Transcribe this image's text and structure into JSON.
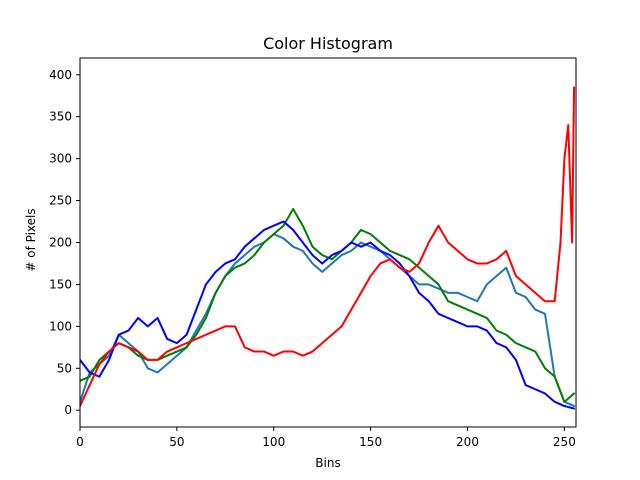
{
  "chart_data": {
    "type": "line",
    "title": "Color Histogram",
    "xlabel": "Bins",
    "ylabel": "# of Pixels",
    "xlim": [
      0,
      256
    ],
    "ylim": [
      -20,
      420
    ],
    "xticks": [
      0,
      50,
      100,
      150,
      200,
      250
    ],
    "yticks": [
      0,
      50,
      100,
      150,
      200,
      250,
      300,
      350,
      400
    ],
    "grid": false,
    "legend": "none",
    "series": [
      {
        "color": "#1f77b4",
        "points": [
          [
            0,
            10
          ],
          [
            5,
            45
          ],
          [
            10,
            55
          ],
          [
            15,
            65
          ],
          [
            20,
            90
          ],
          [
            25,
            80
          ],
          [
            30,
            70
          ],
          [
            35,
            50
          ],
          [
            40,
            45
          ],
          [
            45,
            55
          ],
          [
            50,
            65
          ],
          [
            55,
            75
          ],
          [
            60,
            95
          ],
          [
            65,
            115
          ],
          [
            70,
            140
          ],
          [
            75,
            160
          ],
          [
            80,
            175
          ],
          [
            85,
            185
          ],
          [
            90,
            195
          ],
          [
            95,
            200
          ],
          [
            100,
            210
          ],
          [
            105,
            205
          ],
          [
            110,
            195
          ],
          [
            115,
            190
          ],
          [
            120,
            175
          ],
          [
            125,
            165
          ],
          [
            130,
            175
          ],
          [
            135,
            185
          ],
          [
            140,
            190
          ],
          [
            145,
            200
          ],
          [
            150,
            195
          ],
          [
            155,
            190
          ],
          [
            160,
            180
          ],
          [
            165,
            170
          ],
          [
            170,
            160
          ],
          [
            175,
            150
          ],
          [
            180,
            150
          ],
          [
            185,
            145
          ],
          [
            190,
            140
          ],
          [
            195,
            140
          ],
          [
            200,
            135
          ],
          [
            205,
            130
          ],
          [
            210,
            150
          ],
          [
            215,
            160
          ],
          [
            220,
            170
          ],
          [
            225,
            140
          ],
          [
            230,
            135
          ],
          [
            235,
            120
          ],
          [
            240,
            115
          ],
          [
            245,
            40
          ],
          [
            250,
            10
          ],
          [
            255,
            5
          ]
        ]
      },
      {
        "color": "#008000",
        "points": [
          [
            0,
            35
          ],
          [
            5,
            40
          ],
          [
            10,
            60
          ],
          [
            15,
            70
          ],
          [
            20,
            80
          ],
          [
            25,
            75
          ],
          [
            30,
            65
          ],
          [
            35,
            60
          ],
          [
            40,
            60
          ],
          [
            45,
            65
          ],
          [
            50,
            70
          ],
          [
            55,
            75
          ],
          [
            60,
            90
          ],
          [
            65,
            110
          ],
          [
            70,
            140
          ],
          [
            75,
            160
          ],
          [
            80,
            170
          ],
          [
            85,
            175
          ],
          [
            90,
            185
          ],
          [
            95,
            200
          ],
          [
            100,
            210
          ],
          [
            105,
            220
          ],
          [
            110,
            240
          ],
          [
            115,
            220
          ],
          [
            120,
            195
          ],
          [
            125,
            185
          ],
          [
            130,
            180
          ],
          [
            135,
            190
          ],
          [
            140,
            200
          ],
          [
            145,
            215
          ],
          [
            150,
            210
          ],
          [
            155,
            200
          ],
          [
            160,
            190
          ],
          [
            165,
            185
          ],
          [
            170,
            180
          ],
          [
            175,
            170
          ],
          [
            180,
            160
          ],
          [
            185,
            150
          ],
          [
            190,
            130
          ],
          [
            195,
            125
          ],
          [
            200,
            120
          ],
          [
            205,
            115
          ],
          [
            210,
            110
          ],
          [
            215,
            95
          ],
          [
            220,
            90
          ],
          [
            225,
            80
          ],
          [
            230,
            75
          ],
          [
            235,
            70
          ],
          [
            240,
            50
          ],
          [
            245,
            40
          ],
          [
            250,
            10
          ],
          [
            255,
            20
          ]
        ]
      },
      {
        "color": "#0000ff",
        "points": [
          [
            0,
            60
          ],
          [
            5,
            45
          ],
          [
            10,
            40
          ],
          [
            15,
            60
          ],
          [
            20,
            90
          ],
          [
            25,
            95
          ],
          [
            30,
            110
          ],
          [
            35,
            100
          ],
          [
            40,
            110
          ],
          [
            45,
            85
          ],
          [
            50,
            80
          ],
          [
            55,
            90
          ],
          [
            60,
            120
          ],
          [
            65,
            150
          ],
          [
            70,
            165
          ],
          [
            75,
            175
          ],
          [
            80,
            180
          ],
          [
            85,
            195
          ],
          [
            90,
            205
          ],
          [
            95,
            215
          ],
          [
            100,
            220
          ],
          [
            105,
            225
          ],
          [
            110,
            215
          ],
          [
            115,
            200
          ],
          [
            120,
            185
          ],
          [
            125,
            175
          ],
          [
            130,
            185
          ],
          [
            135,
            190
          ],
          [
            140,
            200
          ],
          [
            145,
            195
          ],
          [
            150,
            200
          ],
          [
            155,
            190
          ],
          [
            160,
            185
          ],
          [
            165,
            175
          ],
          [
            170,
            160
          ],
          [
            175,
            140
          ],
          [
            180,
            130
          ],
          [
            185,
            115
          ],
          [
            190,
            110
          ],
          [
            195,
            105
          ],
          [
            200,
            100
          ],
          [
            205,
            100
          ],
          [
            210,
            95
          ],
          [
            215,
            80
          ],
          [
            220,
            75
          ],
          [
            225,
            60
          ],
          [
            230,
            30
          ],
          [
            235,
            25
          ],
          [
            240,
            20
          ],
          [
            245,
            10
          ],
          [
            250,
            5
          ],
          [
            255,
            2
          ]
        ]
      },
      {
        "color": "#ff0000",
        "points": [
          [
            0,
            5
          ],
          [
            5,
            30
          ],
          [
            10,
            55
          ],
          [
            15,
            70
          ],
          [
            20,
            80
          ],
          [
            25,
            75
          ],
          [
            30,
            70
          ],
          [
            35,
            60
          ],
          [
            40,
            60
          ],
          [
            45,
            70
          ],
          [
            50,
            75
          ],
          [
            55,
            80
          ],
          [
            60,
            85
          ],
          [
            65,
            90
          ],
          [
            70,
            95
          ],
          [
            75,
            100
          ],
          [
            80,
            100
          ],
          [
            85,
            75
          ],
          [
            90,
            70
          ],
          [
            95,
            70
          ],
          [
            100,
            65
          ],
          [
            105,
            70
          ],
          [
            110,
            70
          ],
          [
            115,
            65
          ],
          [
            120,
            70
          ],
          [
            125,
            80
          ],
          [
            130,
            90
          ],
          [
            135,
            100
          ],
          [
            140,
            120
          ],
          [
            145,
            140
          ],
          [
            150,
            160
          ],
          [
            155,
            175
          ],
          [
            160,
            180
          ],
          [
            165,
            170
          ],
          [
            170,
            165
          ],
          [
            175,
            175
          ],
          [
            180,
            200
          ],
          [
            185,
            220
          ],
          [
            190,
            200
          ],
          [
            195,
            190
          ],
          [
            200,
            180
          ],
          [
            205,
            175
          ],
          [
            210,
            175
          ],
          [
            215,
            180
          ],
          [
            220,
            190
          ],
          [
            225,
            160
          ],
          [
            230,
            150
          ],
          [
            235,
            140
          ],
          [
            240,
            130
          ],
          [
            245,
            130
          ],
          [
            248,
            200
          ],
          [
            250,
            300
          ],
          [
            252,
            340
          ],
          [
            254,
            200
          ],
          [
            255,
            385
          ]
        ]
      }
    ]
  }
}
